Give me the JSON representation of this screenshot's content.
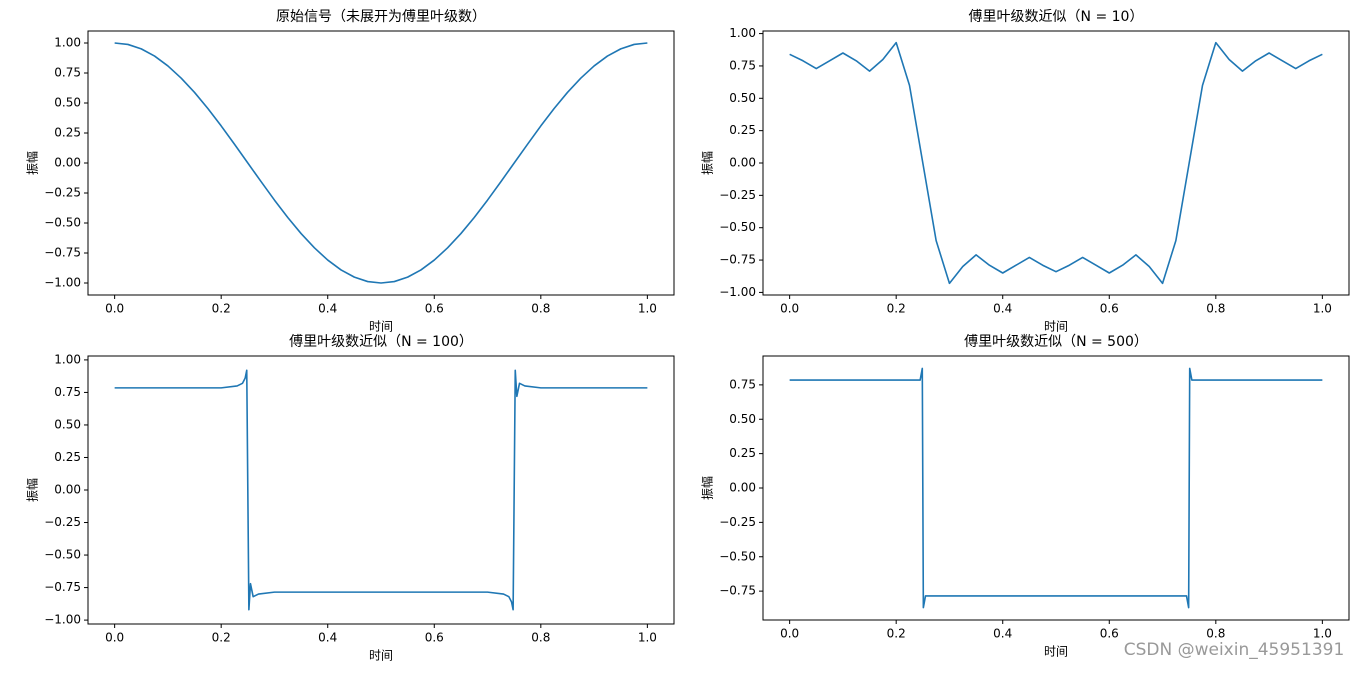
{
  "chart_data": [
    {
      "type": "line",
      "title": "原始信号（未展开为傅里叶级数）",
      "xlabel": "时间",
      "ylabel": "振幅",
      "color": "#1f77b4",
      "x": [
        0,
        0.025,
        0.05,
        0.075,
        0.1,
        0.125,
        0.15,
        0.175,
        0.2,
        0.225,
        0.25,
        0.275,
        0.3,
        0.325,
        0.35,
        0.375,
        0.4,
        0.425,
        0.45,
        0.475,
        0.5,
        0.525,
        0.55,
        0.575,
        0.6,
        0.625,
        0.65,
        0.675,
        0.7,
        0.725,
        0.75,
        0.775,
        0.8,
        0.825,
        0.85,
        0.875,
        0.9,
        0.925,
        0.95,
        0.975,
        1.0
      ],
      "values": [
        1,
        0.988,
        0.951,
        0.891,
        0.809,
        0.707,
        0.588,
        0.454,
        0.309,
        0.156,
        0,
        -0.156,
        -0.309,
        -0.454,
        -0.588,
        -0.707,
        -0.809,
        -0.891,
        -0.951,
        -0.988,
        -1,
        -0.988,
        -0.951,
        -0.891,
        -0.809,
        -0.707,
        -0.588,
        -0.454,
        -0.309,
        -0.156,
        0,
        0.156,
        0.309,
        0.454,
        0.588,
        0.707,
        0.809,
        0.891,
        0.951,
        0.988,
        1
      ],
      "xlim": [
        -0.05,
        1.05
      ],
      "ylim": [
        -1.1,
        1.1
      ],
      "xticks": [
        {
          "value": 0,
          "label": "0.0"
        },
        0.2,
        0.4,
        0.6,
        0.8,
        {
          "value": 1,
          "label": "1.0"
        }
      ],
      "yticks": [
        {
          "value": -1,
          "label": "−1.00"
        },
        {
          "value": -0.75,
          "label": "−0.75"
        },
        {
          "value": -0.5,
          "label": "−0.50"
        },
        {
          "value": -0.25,
          "label": "−0.25"
        },
        {
          "value": 0,
          "label": "0.00"
        },
        {
          "value": 0.25,
          "label": "0.25"
        },
        {
          "value": 0.5,
          "label": "0.50"
        },
        {
          "value": 0.75,
          "label": "0.75"
        },
        {
          "value": 1,
          "label": "1.00"
        }
      ]
    },
    {
      "type": "line",
      "title": "傅里叶级数近似（N = 10）",
      "xlabel": "时间",
      "ylabel": "振幅",
      "color": "#1f77b4",
      "x": [
        0,
        0.025,
        0.05,
        0.075,
        0.1,
        0.125,
        0.15,
        0.175,
        0.2,
        0.225,
        0.25,
        0.275,
        0.3,
        0.325,
        0.35,
        0.375,
        0.4,
        0.425,
        0.45,
        0.475,
        0.5,
        0.525,
        0.55,
        0.575,
        0.6,
        0.625,
        0.65,
        0.675,
        0.7,
        0.725,
        0.75,
        0.775,
        0.8,
        0.825,
        0.85,
        0.875,
        0.9,
        0.925,
        0.95,
        0.975,
        1.0
      ],
      "values": [
        0.84,
        0.79,
        0.73,
        0.79,
        0.85,
        0.79,
        0.71,
        0.8,
        0.93,
        0.6,
        0,
        -0.6,
        -0.93,
        -0.8,
        -0.71,
        -0.79,
        -0.85,
        -0.79,
        -0.73,
        -0.79,
        -0.84,
        -0.79,
        -0.73,
        -0.79,
        -0.85,
        -0.79,
        -0.71,
        -0.8,
        -0.93,
        -0.6,
        0,
        0.6,
        0.93,
        0.8,
        0.71,
        0.79,
        0.85,
        0.79,
        0.73,
        0.79,
        0.84
      ],
      "xlim": [
        -0.05,
        1.05
      ],
      "ylim": [
        -1.02,
        1.02
      ],
      "xticks": [
        {
          "value": 0,
          "label": "0.0"
        },
        0.2,
        0.4,
        0.6,
        0.8,
        {
          "value": 1,
          "label": "1.0"
        }
      ],
      "yticks": [
        {
          "value": -1,
          "label": "−1.00"
        },
        {
          "value": -0.75,
          "label": "−0.75"
        },
        {
          "value": -0.5,
          "label": "−0.50"
        },
        {
          "value": -0.25,
          "label": "−0.25"
        },
        {
          "value": 0,
          "label": "0.00"
        },
        {
          "value": 0.25,
          "label": "0.25"
        },
        {
          "value": 0.5,
          "label": "0.50"
        },
        {
          "value": 0.75,
          "label": "0.75"
        },
        {
          "value": 1,
          "label": "1.00"
        }
      ]
    },
    {
      "type": "line",
      "title": "傅里叶级数近似（N = 100）",
      "xlabel": "时间",
      "ylabel": "振幅",
      "color": "#1f77b4",
      "x": [
        0,
        0.2,
        0.23,
        0.24,
        0.245,
        0.248,
        0.25,
        0.252,
        0.255,
        0.26,
        0.27,
        0.3,
        0.7,
        0.73,
        0.74,
        0.745,
        0.748,
        0.75,
        0.752,
        0.755,
        0.76,
        0.77,
        0.8,
        1.0
      ],
      "values": [
        0.785,
        0.785,
        0.8,
        0.82,
        0.86,
        0.92,
        0,
        -0.92,
        -0.72,
        -0.82,
        -0.8,
        -0.785,
        -0.785,
        -0.8,
        -0.82,
        -0.86,
        -0.92,
        0,
        0.92,
        0.72,
        0.82,
        0.8,
        0.785,
        0.785
      ],
      "xlim": [
        -0.05,
        1.05
      ],
      "ylim": [
        -1.03,
        1.03
      ],
      "xticks": [
        {
          "value": 0,
          "label": "0.0"
        },
        0.2,
        0.4,
        0.6,
        0.8,
        {
          "value": 1,
          "label": "1.0"
        }
      ],
      "yticks": [
        {
          "value": -1,
          "label": "−1.00"
        },
        {
          "value": -0.75,
          "label": "−0.75"
        },
        {
          "value": -0.5,
          "label": "−0.50"
        },
        {
          "value": -0.25,
          "label": "−0.25"
        },
        {
          "value": 0,
          "label": "0.00"
        },
        {
          "value": 0.25,
          "label": "0.25"
        },
        {
          "value": 0.5,
          "label": "0.50"
        },
        {
          "value": 0.75,
          "label": "0.75"
        },
        {
          "value": 1,
          "label": "1.00"
        }
      ]
    },
    {
      "type": "line",
      "title": "傅里叶级数近似（N = 500）",
      "xlabel": "时间",
      "ylabel": "振幅",
      "color": "#1f77b4",
      "x": [
        0,
        0.245,
        0.249,
        0.25,
        0.251,
        0.255,
        0.745,
        0.749,
        0.75,
        0.751,
        0.755,
        1.0
      ],
      "values": [
        0.785,
        0.785,
        0.87,
        0,
        -0.87,
        -0.785,
        -0.785,
        -0.87,
        0,
        0.87,
        0.785,
        0.785
      ],
      "xlim": [
        -0.05,
        1.05
      ],
      "ylim": [
        -0.96,
        0.96
      ],
      "xticks": [
        {
          "value": 0,
          "label": "0.0"
        },
        0.2,
        0.4,
        0.6,
        0.8,
        {
          "value": 1,
          "label": "1.0"
        }
      ],
      "yticks": [
        {
          "value": -0.75,
          "label": "−0.75"
        },
        {
          "value": -0.5,
          "label": "−0.50"
        },
        {
          "value": -0.25,
          "label": "−0.25"
        },
        {
          "value": 0,
          "label": "0.00"
        },
        {
          "value": 0.25,
          "label": "0.25"
        },
        {
          "value": 0.5,
          "label": "0.50"
        },
        {
          "value": 0.75,
          "label": "0.75"
        }
      ]
    }
  ],
  "watermark": "CSDN @weixin_45951391"
}
